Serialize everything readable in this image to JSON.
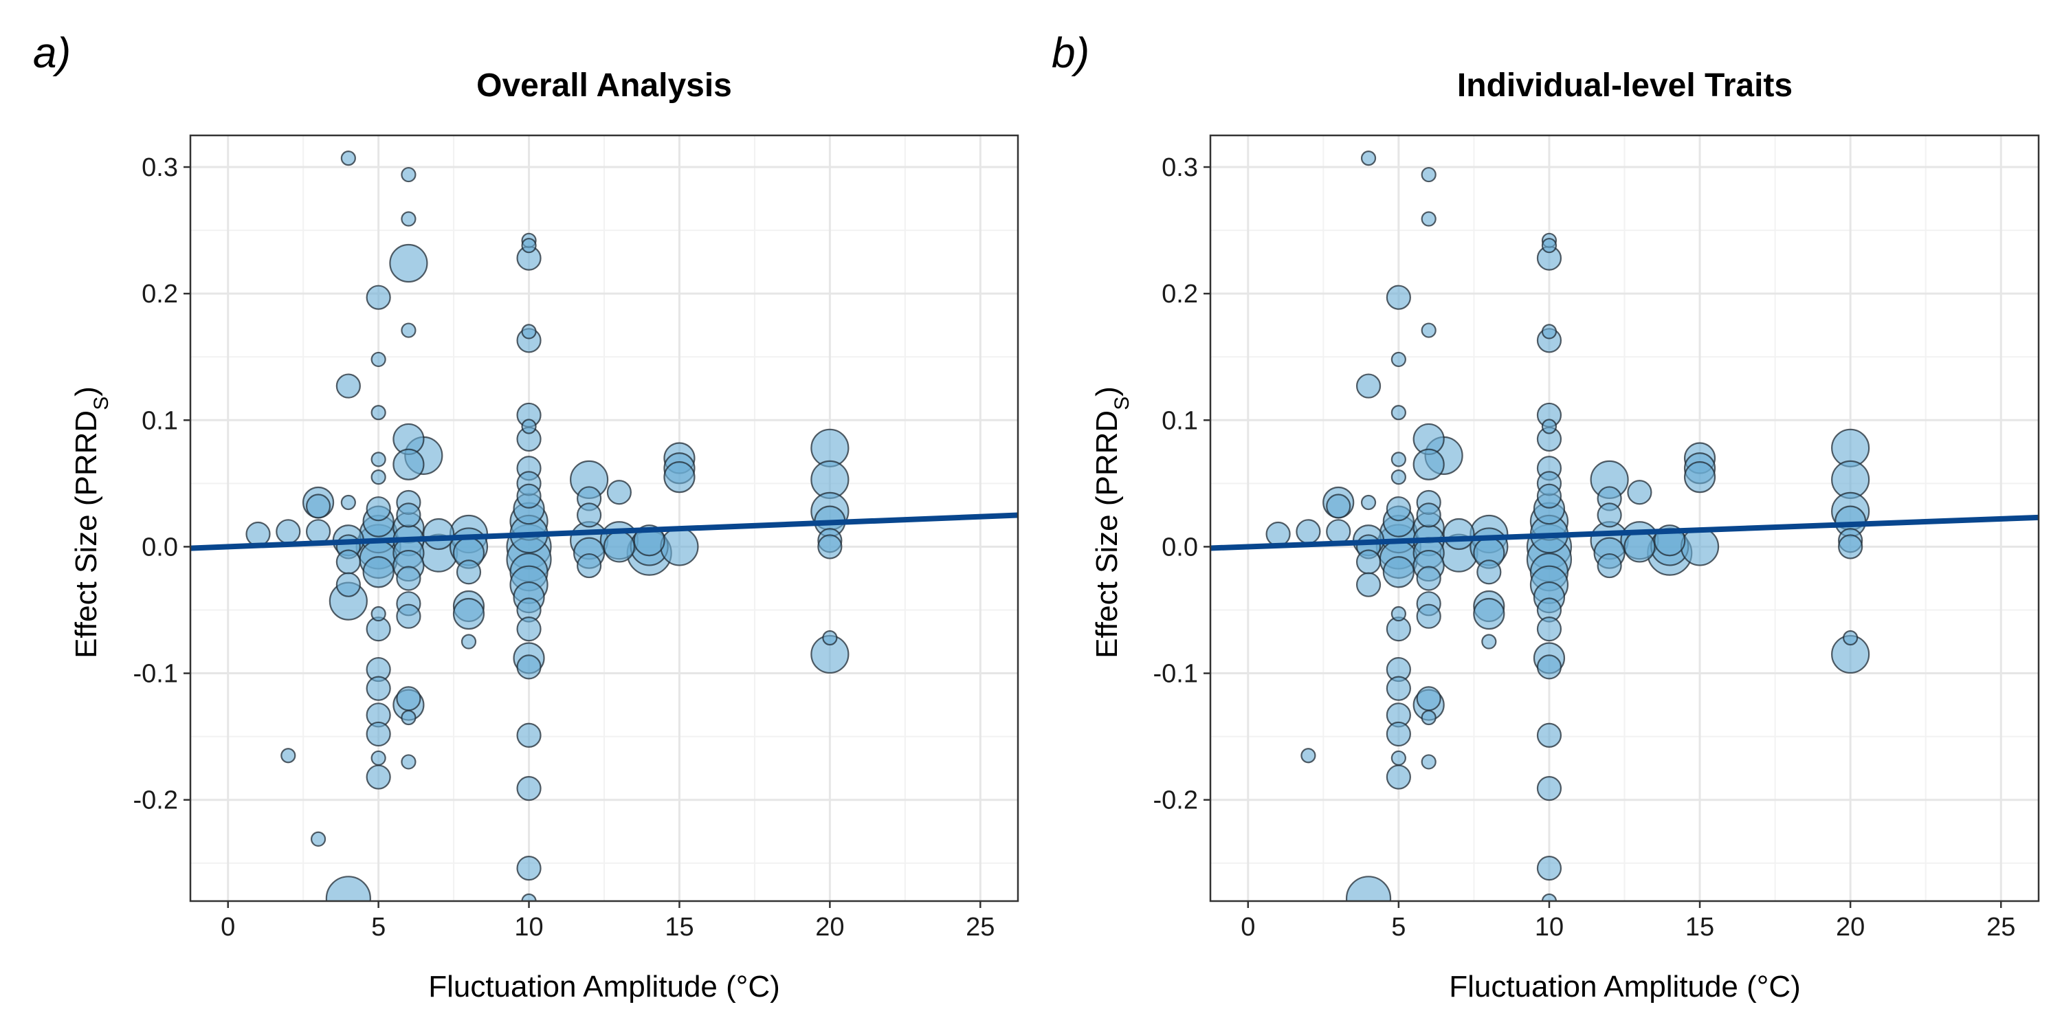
{
  "chart_data": [
    {
      "panel_label": "a)",
      "type": "scatter",
      "title": "Overall Analysis",
      "xlabel": "Fluctuation Amplitude (°C)",
      "ylabel_main": "Effect Size (PRRD",
      "ylabel_sub": "S",
      "ylabel_close": ")",
      "xlim": [
        -1.25,
        26.25
      ],
      "ylim": [
        -0.28,
        0.325
      ],
      "xticks": [
        0,
        5,
        10,
        15,
        20,
        25
      ],
      "xtick_labels": [
        "0",
        "5",
        "10",
        "15",
        "20",
        "25"
      ],
      "yticks": [
        -0.2,
        -0.1,
        0.0,
        0.1,
        0.2,
        0.3
      ],
      "ytick_labels": [
        "-0.2",
        "-0.1",
        "0.0",
        "0.1",
        "0.2",
        "0.3"
      ],
      "grid": true,
      "point_color": "#6baed6",
      "line_color": "#08468e",
      "regression": {
        "intercept": 0.0,
        "slope": 0.00095
      },
      "points": [
        [
          1,
          0.01,
          3
        ],
        [
          2,
          0.012,
          3
        ],
        [
          2,
          -0.165,
          1
        ],
        [
          3,
          -0.231,
          1
        ],
        [
          3,
          0.035,
          4
        ],
        [
          3,
          0.012,
          3
        ],
        [
          3,
          0.032,
          3
        ],
        [
          4,
          0.307,
          1
        ],
        [
          4,
          0.127,
          3
        ],
        [
          4,
          0.035,
          1
        ],
        [
          4,
          0.005,
          4
        ],
        [
          4,
          0.0,
          3
        ],
        [
          4,
          -0.012,
          3
        ],
        [
          4,
          -0.03,
          3
        ],
        [
          4,
          -0.043,
          5
        ],
        [
          4,
          -0.278,
          6
        ],
        [
          5,
          0.197,
          3
        ],
        [
          5,
          0.148,
          1
        ],
        [
          5,
          0.106,
          1
        ],
        [
          5,
          0.069,
          1
        ],
        [
          5,
          0.055,
          1
        ],
        [
          5,
          0.03,
          3
        ],
        [
          5,
          0.02,
          4
        ],
        [
          5,
          0.01,
          5
        ],
        [
          5,
          0.0,
          6
        ],
        [
          5,
          -0.01,
          5
        ],
        [
          5,
          -0.02,
          4
        ],
        [
          5,
          -0.053,
          1
        ],
        [
          5,
          -0.065,
          3
        ],
        [
          5,
          -0.097,
          3
        ],
        [
          5,
          -0.112,
          3
        ],
        [
          5,
          -0.133,
          3
        ],
        [
          5,
          -0.148,
          3
        ],
        [
          5,
          -0.167,
          1
        ],
        [
          5,
          -0.182,
          3
        ],
        [
          6,
          0.294,
          1
        ],
        [
          6,
          0.259,
          1
        ],
        [
          6,
          0.224,
          5
        ],
        [
          6,
          0.171,
          1
        ],
        [
          6,
          0.085,
          4
        ],
        [
          6,
          0.065,
          4
        ],
        [
          6,
          0.035,
          3
        ],
        [
          6,
          0.025,
          3
        ],
        [
          6,
          0.015,
          4
        ],
        [
          6,
          0.005,
          4
        ],
        [
          6,
          -0.005,
          4
        ],
        [
          6,
          -0.015,
          4
        ],
        [
          6,
          -0.025,
          3
        ],
        [
          6,
          -0.045,
          3
        ],
        [
          6,
          -0.055,
          3
        ],
        [
          6,
          -0.12,
          3
        ],
        [
          6,
          -0.125,
          4
        ],
        [
          6,
          -0.135,
          1
        ],
        [
          6,
          -0.17,
          1
        ],
        [
          6.5,
          0.072,
          5
        ],
        [
          7,
          -0.005,
          5
        ],
        [
          7,
          0.01,
          4
        ],
        [
          8,
          0.01,
          5
        ],
        [
          8,
          0.0,
          5
        ],
        [
          8,
          -0.005,
          4
        ],
        [
          8,
          -0.02,
          3
        ],
        [
          8,
          -0.047,
          4
        ],
        [
          8,
          -0.053,
          4
        ],
        [
          8,
          -0.075,
          1
        ],
        [
          10,
          0.242,
          1
        ],
        [
          10,
          0.238,
          1
        ],
        [
          10,
          0.228,
          3
        ],
        [
          10,
          0.17,
          1
        ],
        [
          10,
          0.163,
          3
        ],
        [
          10,
          0.104,
          3
        ],
        [
          10,
          0.095,
          1
        ],
        [
          10,
          0.085,
          3
        ],
        [
          10,
          0.062,
          3
        ],
        [
          10,
          0.05,
          3
        ],
        [
          10,
          0.04,
          3
        ],
        [
          10,
          0.03,
          4
        ],
        [
          10,
          0.02,
          5
        ],
        [
          10,
          0.01,
          5
        ],
        [
          10,
          0.0,
          6
        ],
        [
          10,
          -0.01,
          6
        ],
        [
          10,
          -0.02,
          5
        ],
        [
          10,
          -0.03,
          5
        ],
        [
          10,
          -0.04,
          4
        ],
        [
          10,
          -0.05,
          3
        ],
        [
          10,
          -0.065,
          3
        ],
        [
          10,
          -0.088,
          4
        ],
        [
          10,
          -0.095,
          3
        ],
        [
          10,
          -0.149,
          3
        ],
        [
          10,
          -0.191,
          3
        ],
        [
          10,
          -0.254,
          3
        ],
        [
          10,
          -0.28,
          1
        ],
        [
          12,
          0.053,
          5
        ],
        [
          12,
          0.038,
          3
        ],
        [
          12,
          0.025,
          3
        ],
        [
          12,
          0.005,
          5
        ],
        [
          12,
          -0.005,
          4
        ],
        [
          12,
          -0.015,
          3
        ],
        [
          13,
          0.043,
          3
        ],
        [
          13,
          0.0,
          4
        ],
        [
          13,
          0.005,
          5
        ],
        [
          14,
          0.0,
          5
        ],
        [
          14,
          -0.005,
          6
        ],
        [
          14,
          0.005,
          4
        ],
        [
          15,
          0.07,
          4
        ],
        [
          15,
          0.062,
          4
        ],
        [
          15,
          0.055,
          4
        ],
        [
          15,
          0.0,
          5
        ],
        [
          20,
          0.078,
          5
        ],
        [
          20,
          0.053,
          5
        ],
        [
          20,
          0.028,
          5
        ],
        [
          20,
          0.02,
          4
        ],
        [
          20,
          0.005,
          3
        ],
        [
          20,
          0.0,
          3
        ],
        [
          20,
          -0.072,
          1
        ],
        [
          20,
          -0.085,
          5
        ]
      ]
    },
    {
      "panel_label": "b)",
      "type": "scatter",
      "title": "Individual-level Traits",
      "xlabel": "Fluctuation Amplitude (°C)",
      "ylabel_main": "Effect Size (PRRD",
      "ylabel_sub": "S",
      "ylabel_close": ")",
      "xlim": [
        -1.25,
        26.25
      ],
      "ylim": [
        -0.28,
        0.325
      ],
      "xticks": [
        0,
        5,
        10,
        15,
        20,
        25
      ],
      "xtick_labels": [
        "0",
        "5",
        "10",
        "15",
        "20",
        "25"
      ],
      "yticks": [
        -0.2,
        -0.1,
        0.0,
        0.1,
        0.2,
        0.3
      ],
      "ytick_labels": [
        "-0.2",
        "-0.1",
        "0.0",
        "0.1",
        "0.2",
        "0.3"
      ],
      "grid": true,
      "point_color": "#6baed6",
      "line_color": "#08468e",
      "regression": {
        "intercept": 0.0,
        "slope": 0.00088
      },
      "points": [
        [
          1,
          0.01,
          3
        ],
        [
          2,
          0.012,
          3
        ],
        [
          2,
          -0.165,
          1
        ],
        [
          3,
          0.035,
          4
        ],
        [
          3,
          0.012,
          3
        ],
        [
          3,
          0.032,
          3
        ],
        [
          4,
          0.307,
          1
        ],
        [
          4,
          0.127,
          3
        ],
        [
          4,
          0.035,
          1
        ],
        [
          4,
          0.005,
          4
        ],
        [
          4,
          0.0,
          3
        ],
        [
          4,
          -0.012,
          3
        ],
        [
          4,
          -0.03,
          3
        ],
        [
          4,
          -0.278,
          6
        ],
        [
          5,
          0.197,
          3
        ],
        [
          5,
          0.148,
          1
        ],
        [
          5,
          0.106,
          1
        ],
        [
          5,
          0.069,
          1
        ],
        [
          5,
          0.055,
          1
        ],
        [
          5,
          0.03,
          3
        ],
        [
          5,
          0.02,
          4
        ],
        [
          5,
          0.01,
          5
        ],
        [
          5,
          0.0,
          6
        ],
        [
          5,
          -0.01,
          5
        ],
        [
          5,
          -0.02,
          4
        ],
        [
          5,
          -0.053,
          1
        ],
        [
          5,
          -0.065,
          3
        ],
        [
          5,
          -0.097,
          3
        ],
        [
          5,
          -0.112,
          3
        ],
        [
          5,
          -0.133,
          3
        ],
        [
          5,
          -0.148,
          3
        ],
        [
          5,
          -0.167,
          1
        ],
        [
          5,
          -0.182,
          3
        ],
        [
          6,
          0.294,
          1
        ],
        [
          6,
          0.259,
          1
        ],
        [
          6,
          0.171,
          1
        ],
        [
          6,
          0.085,
          4
        ],
        [
          6,
          0.065,
          4
        ],
        [
          6,
          0.035,
          3
        ],
        [
          6,
          0.025,
          3
        ],
        [
          6,
          0.015,
          4
        ],
        [
          6,
          0.005,
          4
        ],
        [
          6,
          -0.005,
          4
        ],
        [
          6,
          -0.015,
          4
        ],
        [
          6,
          -0.025,
          3
        ],
        [
          6,
          -0.045,
          3
        ],
        [
          6,
          -0.055,
          3
        ],
        [
          6,
          -0.12,
          3
        ],
        [
          6,
          -0.125,
          4
        ],
        [
          6,
          -0.135,
          1
        ],
        [
          6,
          -0.17,
          1
        ],
        [
          6.5,
          0.072,
          5
        ],
        [
          7,
          -0.005,
          5
        ],
        [
          7,
          0.01,
          4
        ],
        [
          8,
          0.01,
          5
        ],
        [
          8,
          0.0,
          5
        ],
        [
          8,
          -0.005,
          4
        ],
        [
          8,
          -0.02,
          3
        ],
        [
          8,
          -0.047,
          4
        ],
        [
          8,
          -0.053,
          4
        ],
        [
          8,
          -0.075,
          1
        ],
        [
          10,
          0.242,
          1
        ],
        [
          10,
          0.238,
          1
        ],
        [
          10,
          0.228,
          3
        ],
        [
          10,
          0.17,
          1
        ],
        [
          10,
          0.163,
          3
        ],
        [
          10,
          0.104,
          3
        ],
        [
          10,
          0.095,
          1
        ],
        [
          10,
          0.085,
          3
        ],
        [
          10,
          0.062,
          3
        ],
        [
          10,
          0.05,
          3
        ],
        [
          10,
          0.04,
          3
        ],
        [
          10,
          0.03,
          4
        ],
        [
          10,
          0.02,
          5
        ],
        [
          10,
          0.01,
          5
        ],
        [
          10,
          0.0,
          6
        ],
        [
          10,
          -0.01,
          6
        ],
        [
          10,
          -0.02,
          5
        ],
        [
          10,
          -0.03,
          5
        ],
        [
          10,
          -0.04,
          4
        ],
        [
          10,
          -0.05,
          3
        ],
        [
          10,
          -0.065,
          3
        ],
        [
          10,
          -0.088,
          4
        ],
        [
          10,
          -0.095,
          3
        ],
        [
          10,
          -0.149,
          3
        ],
        [
          10,
          -0.191,
          3
        ],
        [
          10,
          -0.254,
          3
        ],
        [
          10,
          -0.28,
          1
        ],
        [
          12,
          0.053,
          5
        ],
        [
          12,
          0.038,
          3
        ],
        [
          12,
          0.025,
          3
        ],
        [
          12,
          0.005,
          5
        ],
        [
          12,
          -0.005,
          4
        ],
        [
          12,
          -0.015,
          3
        ],
        [
          13,
          0.043,
          3
        ],
        [
          13,
          0.0,
          4
        ],
        [
          13,
          0.005,
          5
        ],
        [
          14,
          0.0,
          5
        ],
        [
          14,
          -0.005,
          6
        ],
        [
          14,
          0.005,
          4
        ],
        [
          15,
          0.07,
          4
        ],
        [
          15,
          0.062,
          4
        ],
        [
          15,
          0.055,
          4
        ],
        [
          15,
          0.0,
          5
        ],
        [
          20,
          0.078,
          5
        ],
        [
          20,
          0.053,
          5
        ],
        [
          20,
          0.028,
          5
        ],
        [
          20,
          0.02,
          4
        ],
        [
          20,
          0.005,
          3
        ],
        [
          20,
          0.0,
          3
        ],
        [
          20,
          -0.072,
          1
        ],
        [
          20,
          -0.085,
          5
        ]
      ]
    }
  ]
}
